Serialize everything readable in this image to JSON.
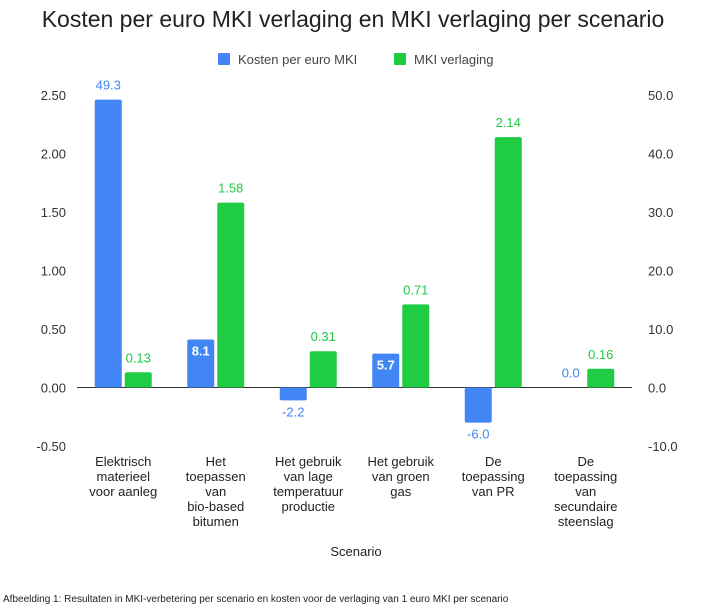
{
  "caption": "Afbeelding 1: Resultaten in MKI-verbetering per scenario en kosten voor de verlaging van 1 euro MKI per scenario",
  "chart_data": {
    "type": "bar",
    "title": "Kosten per euro MKI verlaging en MKI verlaging per scenario",
    "xlabel": "Scenario",
    "categories": [
      [
        "Elektrisch",
        "materieel",
        "voor aanleg"
      ],
      [
        "Het",
        "toepassen",
        "van",
        "bio-based",
        "bitumen"
      ],
      [
        "Het gebruik",
        "van lage",
        "temperatuur",
        "productie"
      ],
      [
        "Het gebruik",
        "van groen",
        "gas"
      ],
      [
        "De",
        "toepassing",
        "van PR"
      ],
      [
        "De",
        "toepassing",
        "van",
        "secundaire",
        "steenslag"
      ]
    ],
    "series": [
      {
        "name": "Kosten per euro MKI",
        "axis": "left",
        "color": "#4285f4",
        "values": [
          2.46,
          0.41,
          -0.11,
          0.29,
          -0.3,
          0.0
        ],
        "labels": [
          "49.3",
          "8.1",
          "-2.2",
          "5.7",
          "-6.0",
          "0.0"
        ]
      },
      {
        "name": "MKI verlaging",
        "axis": "right",
        "color": "#1fcc44",
        "values": [
          2.6,
          31.6,
          6.2,
          14.2,
          42.8,
          3.2
        ],
        "labels": [
          "0.13",
          "1.58",
          "0.31",
          "0.71",
          "2.14",
          "0.16"
        ]
      }
    ],
    "y_left": {
      "lim": [
        -0.5,
        2.5
      ],
      "ticks": [
        "2.50",
        "2.00",
        "1.50",
        "1.00",
        "0.50",
        "0.00",
        "-0.50"
      ]
    },
    "y_right": {
      "lim": [
        -10,
        50
      ],
      "ticks": [
        "50.0",
        "40.0",
        "30.0",
        "20.0",
        "10.0",
        "0.0",
        "-10.0"
      ]
    },
    "legend": "top-center",
    "grid": false
  }
}
